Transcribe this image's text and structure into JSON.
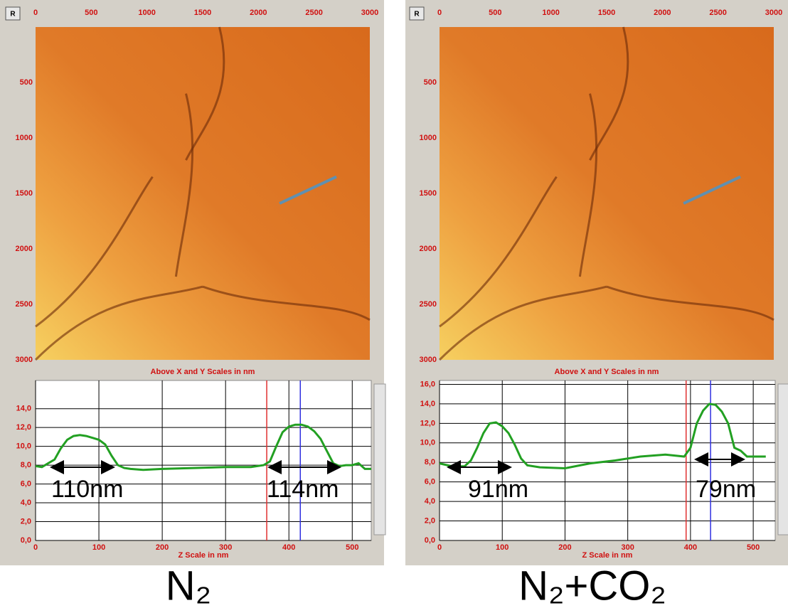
{
  "chart_data": [
    {
      "type": "line",
      "image": {
        "xticks": [
          0,
          500,
          1000,
          1500,
          2000,
          2500,
          3000
        ],
        "yticks": [
          500,
          1000,
          1500,
          2000,
          2500,
          3000
        ],
        "caption": "Above X and Y Scales in nm"
      },
      "x": [
        0,
        10,
        20,
        30,
        40,
        50,
        60,
        70,
        80,
        90,
        100,
        110,
        120,
        130,
        140,
        150,
        170,
        200,
        250,
        300,
        340,
        360,
        370,
        380,
        390,
        400,
        410,
        420,
        430,
        440,
        450,
        460,
        470,
        480,
        490,
        500,
        510,
        520,
        530
      ],
      "series": [
        {
          "color": "#22a022",
          "values": [
            7.9,
            7.8,
            8.2,
            8.6,
            9.8,
            10.7,
            11.1,
            11.2,
            11.1,
            10.9,
            10.7,
            10.2,
            9.0,
            8.0,
            7.7,
            7.6,
            7.5,
            7.6,
            7.7,
            7.8,
            7.8,
            8.0,
            8.4,
            10.0,
            11.5,
            12.1,
            12.3,
            12.3,
            12.1,
            11.6,
            10.8,
            9.5,
            8.2,
            7.9,
            8.0,
            8.0,
            8.2,
            7.6,
            7.6
          ]
        }
      ],
      "cursors": [
        {
          "x": 365,
          "color": "#e03030"
        },
        {
          "x": 418,
          "color": "#3030e0"
        }
      ],
      "xlim": [
        0,
        530
      ],
      "xticks": [
        0,
        100,
        200,
        300,
        400,
        500
      ],
      "ylim": [
        0,
        17
      ],
      "yticks": [
        {
          "value": 0,
          "label": "0,0"
        },
        {
          "value": 2,
          "label": "2,0"
        },
        {
          "value": 4,
          "label": "4,0"
        },
        {
          "value": 6,
          "label": "6,0"
        },
        {
          "value": 8,
          "label": "8,0"
        },
        {
          "value": 10,
          "label": "10,0"
        },
        {
          "value": 12,
          "label": "12,0"
        },
        {
          "value": 14,
          "label": "14,0"
        }
      ],
      "x_label": "Z Scale in nm",
      "annotations": [
        "110nm",
        "114nm"
      ],
      "caption": "N₂"
    },
    {
      "type": "line",
      "image": {
        "xticks": [
          0,
          500,
          1000,
          1500,
          2000,
          2500,
          3000
        ],
        "yticks": [
          500,
          1000,
          1500,
          2000,
          2500,
          3000
        ],
        "caption": "Above X and Y Scales in nm"
      },
      "x": [
        0,
        20,
        40,
        50,
        60,
        70,
        80,
        90,
        100,
        110,
        120,
        130,
        140,
        160,
        200,
        240,
        280,
        320,
        360,
        390,
        400,
        410,
        420,
        430,
        440,
        450,
        460,
        470,
        480,
        490,
        520
      ],
      "series": [
        {
          "color": "#22a022",
          "values": [
            7.9,
            7.6,
            7.6,
            8.2,
            9.5,
            11.0,
            12.0,
            12.1,
            11.7,
            11.0,
            9.8,
            8.4,
            7.7,
            7.5,
            7.4,
            7.9,
            8.2,
            8.6,
            8.8,
            8.6,
            9.5,
            12.0,
            13.3,
            14.0,
            13.9,
            13.2,
            12.0,
            9.5,
            9.2,
            8.6,
            8.6
          ]
        }
      ],
      "cursors": [
        {
          "x": 393,
          "color": "#e03030"
        },
        {
          "x": 432,
          "color": "#3030e0"
        }
      ],
      "xlim": [
        0,
        535
      ],
      "xticks": [
        0,
        100,
        200,
        300,
        400,
        500
      ],
      "ylim": [
        0,
        16.4
      ],
      "yticks": [
        {
          "value": 0,
          "label": "0,0"
        },
        {
          "value": 2,
          "label": "2,0"
        },
        {
          "value": 4,
          "label": "4,0"
        },
        {
          "value": 6,
          "label": "6,0"
        },
        {
          "value": 8,
          "label": "8,0"
        },
        {
          "value": 10,
          "label": "10,0"
        },
        {
          "value": 12,
          "label": "12,0"
        },
        {
          "value": 14,
          "label": "14,0"
        },
        {
          "value": 16,
          "label": "16,0"
        }
      ],
      "x_label": "Z Scale in nm",
      "annotations": [
        "91nm",
        "79nm"
      ],
      "caption": "N₂+CO₂"
    }
  ]
}
